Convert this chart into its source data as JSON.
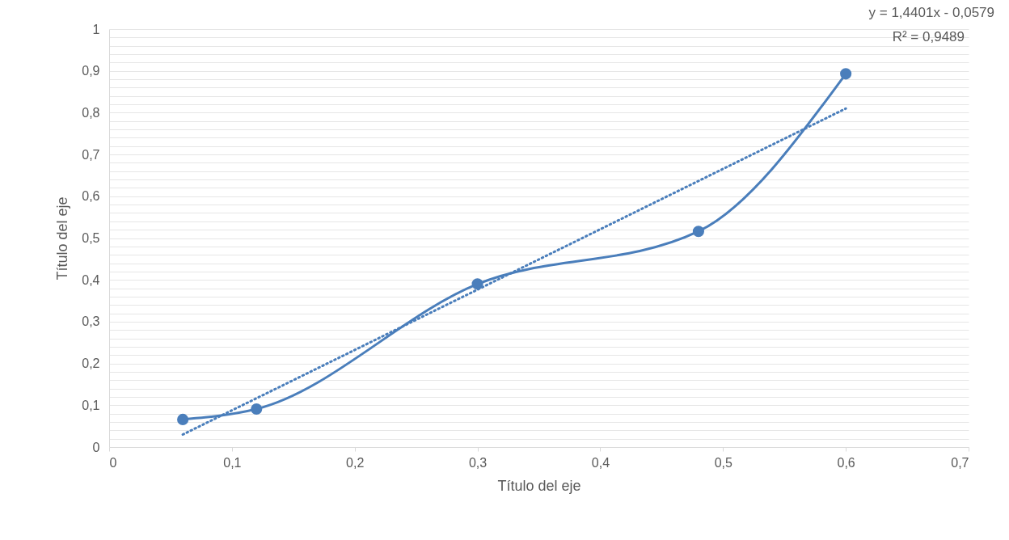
{
  "chart_data": {
    "type": "line",
    "xlabel": "Título del eje",
    "ylabel": "Título del eje",
    "series": [
      {
        "color": "#4a7ebb",
        "x": [
          0.06,
          0.12,
          0.3,
          0.48,
          0.6
        ],
        "values": [
          0.066,
          0.091,
          0.39,
          0.516,
          0.893
        ],
        "marker": "circle",
        "line_style": "solid"
      },
      {
        "color": "#4a7ebb",
        "x": [
          0.06,
          0.6
        ],
        "values": [
          0.03,
          0.81
        ],
        "marker": "none",
        "line_style": "dotted"
      }
    ],
    "annotations": [
      "y = 1,4401x - 0,0579",
      "R² = 0,9489"
    ],
    "xlim": [
      0,
      0.7
    ],
    "ylim": [
      0,
      1
    ],
    "xticks": [
      0,
      {
        "value": 0.1,
        "label": "0,1"
      },
      {
        "value": 0.2,
        "label": "0,2"
      },
      {
        "value": 0.3,
        "label": "0,3"
      },
      {
        "value": 0.4,
        "label": "0,4"
      },
      {
        "value": 0.5,
        "label": "0,5"
      },
      {
        "value": 0.6,
        "label": "0,6"
      },
      {
        "value": 0.7,
        "label": "0,7"
      }
    ],
    "yticks": [
      0,
      {
        "value": 0.02,
        "label": null
      },
      {
        "value": 0.04,
        "label": null
      },
      {
        "value": 0.06,
        "label": null
      },
      {
        "value": 0.08,
        "label": null
      },
      {
        "value": 0.1,
        "label": "0,1"
      },
      {
        "value": 0.12,
        "label": null
      },
      {
        "value": 0.14,
        "label": null
      },
      {
        "value": 0.16,
        "label": null
      },
      {
        "value": 0.18,
        "label": null
      },
      {
        "value": 0.2,
        "label": "0,2"
      },
      {
        "value": 0.22,
        "label": null
      },
      {
        "value": 0.24,
        "label": null
      },
      {
        "value": 0.26,
        "label": null
      },
      {
        "value": 0.28,
        "label": null
      },
      {
        "value": 0.3,
        "label": "0,3"
      },
      {
        "value": 0.32,
        "label": null
      },
      {
        "value": 0.34,
        "label": null
      },
      {
        "value": 0.36,
        "label": null
      },
      {
        "value": 0.38,
        "label": null
      },
      {
        "value": 0.4,
        "label": "0,4"
      },
      {
        "value": 0.42,
        "label": null
      },
      {
        "value": 0.44,
        "label": null
      },
      {
        "value": 0.46,
        "label": null
      },
      {
        "value": 0.48,
        "label": null
      },
      {
        "value": 0.5,
        "label": "0,5"
      },
      {
        "value": 0.52,
        "label": null
      },
      {
        "value": 0.54,
        "label": null
      },
      {
        "value": 0.56,
        "label": null
      },
      {
        "value": 0.58,
        "label": null
      },
      {
        "value": 0.6,
        "label": "0,6"
      },
      {
        "value": 0.62,
        "label": null
      },
      {
        "value": 0.64,
        "label": null
      },
      {
        "value": 0.66,
        "label": null
      },
      {
        "value": 0.68,
        "label": null
      },
      {
        "value": 0.7,
        "label": "0,7"
      },
      {
        "value": 0.72,
        "label": null
      },
      {
        "value": 0.74,
        "label": null
      },
      {
        "value": 0.76,
        "label": null
      },
      {
        "value": 0.78,
        "label": null
      },
      {
        "value": 0.8,
        "label": "0,8"
      },
      {
        "value": 0.82,
        "label": null
      },
      {
        "value": 0.84,
        "label": null
      },
      {
        "value": 0.86,
        "label": null
      },
      {
        "value": 0.88,
        "label": null
      },
      {
        "value": 0.9,
        "label": "0,9"
      },
      {
        "value": 0.92,
        "label": null
      },
      {
        "value": 0.94,
        "label": null
      },
      {
        "value": 0.96,
        "label": null
      },
      {
        "value": 0.98,
        "label": null
      },
      1
    ],
    "grid": "y"
  }
}
